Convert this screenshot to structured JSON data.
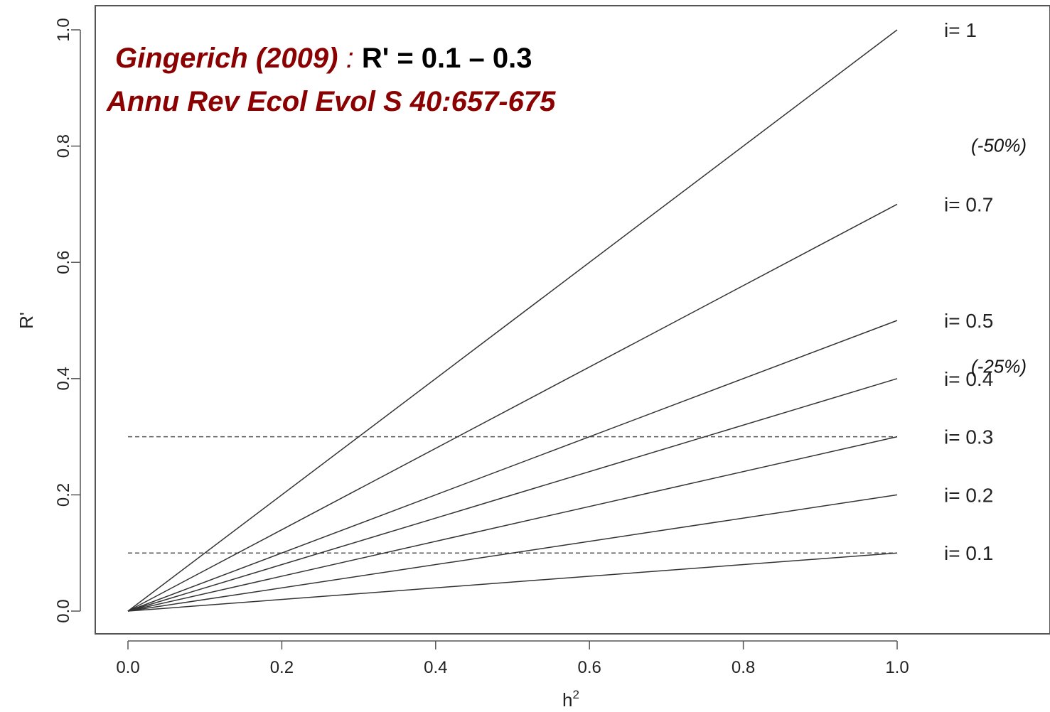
{
  "chart_data": {
    "type": "line",
    "xlabel": "h",
    "xlabel_sup": "2",
    "ylabel": "R'",
    "xlim": [
      0,
      1
    ],
    "ylim": [
      0,
      1
    ],
    "xticks": [
      "0.0",
      "0.2",
      "0.4",
      "0.6",
      "0.8",
      "1.0"
    ],
    "yticks": [
      "0.0",
      "0.2",
      "0.4",
      "0.6",
      "0.8",
      "1.0"
    ],
    "grid": false,
    "series": [
      {
        "name": "i= 1",
        "i": 1.0,
        "x": [
          0,
          1
        ],
        "y": [
          0,
          1.0
        ]
      },
      {
        "name": "i= 0.7",
        "i": 0.7,
        "x": [
          0,
          1
        ],
        "y": [
          0,
          0.7
        ]
      },
      {
        "name": "i= 0.5",
        "i": 0.5,
        "x": [
          0,
          1
        ],
        "y": [
          0,
          0.5
        ]
      },
      {
        "name": "i= 0.4",
        "i": 0.4,
        "x": [
          0,
          1
        ],
        "y": [
          0,
          0.4
        ]
      },
      {
        "name": "i= 0.3",
        "i": 0.3,
        "x": [
          0,
          1
        ],
        "y": [
          0,
          0.3
        ]
      },
      {
        "name": "i= 0.2",
        "i": 0.2,
        "x": [
          0,
          1
        ],
        "y": [
          0,
          0.2
        ]
      },
      {
        "name": "i= 0.1",
        "i": 0.1,
        "x": [
          0,
          1
        ],
        "y": [
          0,
          0.1
        ]
      }
    ],
    "reference_lines": [
      {
        "type": "horizontal",
        "y": 0.3,
        "style": "dashed"
      },
      {
        "type": "horizontal",
        "y": 0.1,
        "style": "dashed"
      }
    ],
    "annotations": [
      {
        "text": "(-50%)",
        "y": 0.8
      },
      {
        "text": "(-25%)",
        "y": 0.42
      }
    ]
  },
  "header_annotation": {
    "citation_1": "Gingerich (2009)",
    "colon": ":",
    "formula": "R' = 0.1 – 0.3",
    "citation_2": "Annu Rev Ecol Evol S 40:657-675"
  },
  "colors": {
    "citation": "#8b0000",
    "formula": "#000000",
    "lines": "#333333",
    "reference": "#555555",
    "axes": "#555555"
  }
}
